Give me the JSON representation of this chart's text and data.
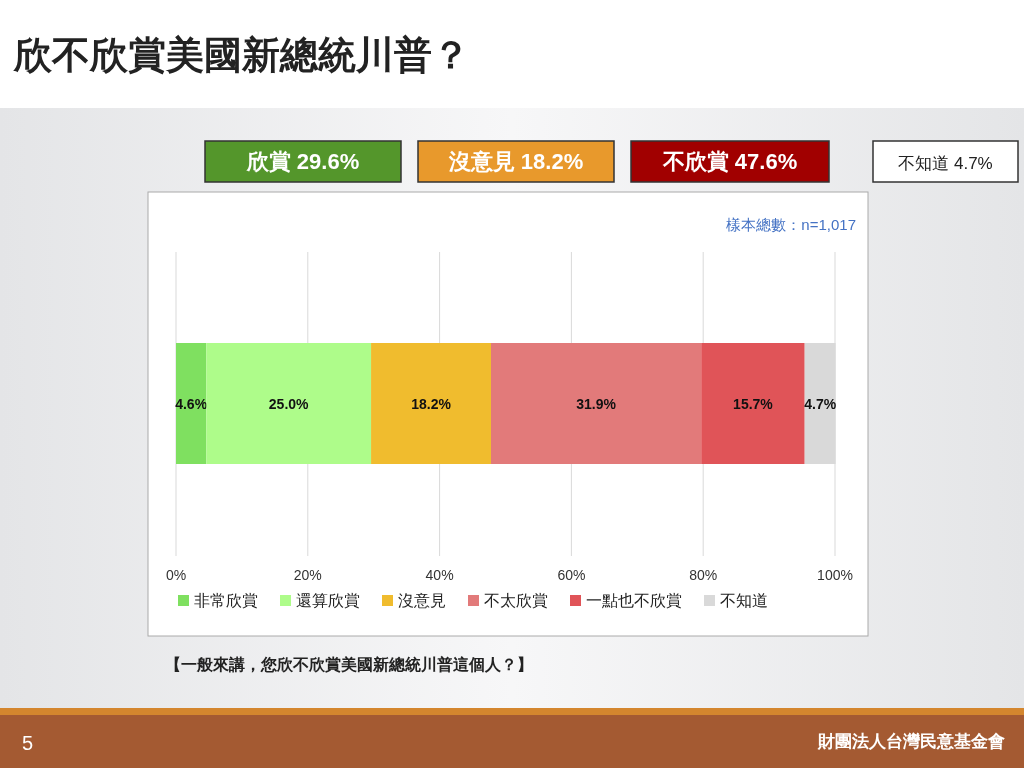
{
  "chart_data": {
    "type": "bar",
    "orientation": "horizontal",
    "stacked": true,
    "title": "欣不欣賞美國新總統川普？",
    "categories": [
      null
    ],
    "series": [
      {
        "name": "非常欣賞",
        "color": "#7fe060",
        "values": [
          4.6
        ],
        "value_labels": [
          "4.6%"
        ]
      },
      {
        "name": "還算欣賞",
        "color": "#aefc8a",
        "values": [
          25.0
        ],
        "value_labels": [
          "25.0%"
        ]
      },
      {
        "name": "沒意見",
        "color": "#f0bc2e",
        "values": [
          18.2
        ],
        "value_labels": [
          "18.2%"
        ]
      },
      {
        "name": "不太欣賞",
        "color": "#e27a7a",
        "values": [
          31.9
        ],
        "value_labels": [
          "31.9%"
        ]
      },
      {
        "name": "一點也不欣賞",
        "color": "#e05458",
        "values": [
          15.7
        ],
        "value_labels": [
          "15.7%"
        ]
      },
      {
        "name": "不知道",
        "color": "#d9d9d9",
        "values": [
          4.7
        ],
        "value_labels": [
          "4.7%"
        ]
      }
    ],
    "xlim": [
      0,
      100
    ],
    "xticks": [
      {
        "value": 0,
        "label": "0%"
      },
      {
        "value": 20,
        "label": "20%"
      },
      {
        "value": 40,
        "label": "40%"
      },
      {
        "value": 60,
        "label": "60%"
      },
      {
        "value": 80,
        "label": "80%"
      },
      {
        "value": 100,
        "label": "100%"
      }
    ],
    "grid": "x",
    "legend": "bottom",
    "annotations": [
      "欣賞 29.6%",
      "沒意見 18.2%",
      "不欣賞 47.6%",
      "不知道 4.7%",
      "樣本總數：n=1,017",
      "【一般來講，您欣不欣賞美國新總統川普這個人？】",
      "5",
      "財團法人台灣民意基金會"
    ]
  }
}
